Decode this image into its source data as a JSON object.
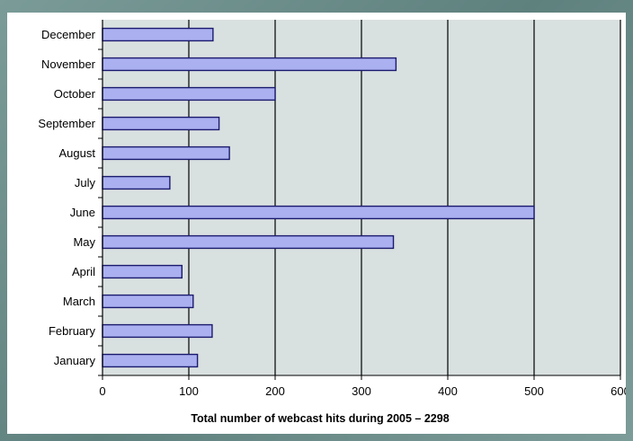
{
  "chart_data": {
    "type": "bar",
    "orientation": "horizontal",
    "categories": [
      "January",
      "February",
      "March",
      "April",
      "May",
      "June",
      "July",
      "August",
      "September",
      "October",
      "November",
      "December"
    ],
    "values": [
      110,
      127,
      105,
      92,
      337,
      500,
      78,
      147,
      135,
      200,
      340,
      128
    ],
    "xlabel": "Total number of webcast hits during 2005 – 2298",
    "ylabel": "",
    "xlim": [
      0,
      600
    ],
    "xticks": [
      0,
      100,
      200,
      300,
      400,
      500,
      600
    ],
    "grid": "vertical",
    "colors": {
      "bar_fill": "#aab0f0",
      "bar_stroke": "#1a1a6e",
      "plot_bg": "#d9e0e0",
      "gridline": "#000000"
    }
  }
}
